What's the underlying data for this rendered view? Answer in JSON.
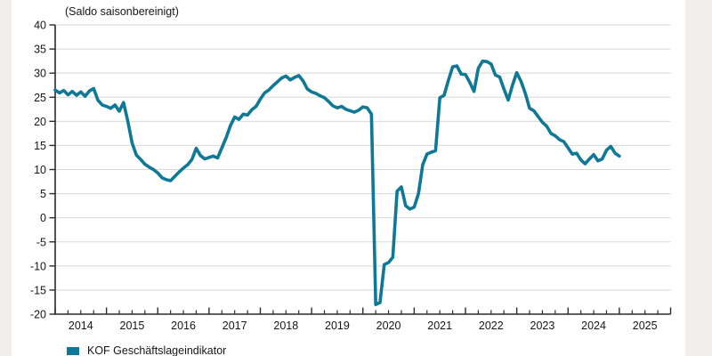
{
  "chart": {
    "subtitle": "(Saldo saisonbereinigt)",
    "legend_label": "KOF Geschäftslageindikator",
    "colors": {
      "line": "#0f7896",
      "grid": "#d8d8d5",
      "axis": "#2b2b2b",
      "text": "#161616",
      "page_background": "#f0efec",
      "plot_background": "#ffffff"
    }
  },
  "chart_data": {
    "type": "line",
    "title": "(Saldo saisonbereinigt)",
    "xlabel": "",
    "ylabel": "",
    "ylim": [
      -20,
      40
    ],
    "xlim": [
      2014,
      2026
    ],
    "grid": "horizontal",
    "legend_position": "bottom-left",
    "y_ticks": [
      40,
      35,
      30,
      25,
      20,
      15,
      10,
      5,
      0,
      -5,
      -10,
      -15,
      -20
    ],
    "x_major_ticks": [
      2014,
      2015,
      2016,
      2017,
      2018,
      2019,
      2020,
      2021,
      2022,
      2023,
      2024,
      2025,
      2026
    ],
    "x_minor_tick_interval_years": 0.25,
    "x_tick_labels": [
      "2014",
      "2015",
      "2016",
      "2017",
      "2018",
      "2019",
      "2020",
      "2021",
      "2022",
      "2023",
      "2024",
      "2025"
    ],
    "series": [
      {
        "name": "KOF Geschäftslageindikator",
        "color": "#0f7896",
        "x_start": 2014.0,
        "x_step_months": 1,
        "values": [
          26.5,
          25.9,
          26.4,
          25.5,
          26.2,
          25.4,
          26.1,
          25.2,
          26.3,
          26.8,
          24.4,
          23.4,
          23.1,
          22.7,
          23.4,
          22.1,
          23.9,
          20.0,
          15.5,
          13.0,
          12.1,
          11.1,
          10.5,
          10.0,
          9.3,
          8.3,
          7.9,
          7.7,
          8.6,
          9.5,
          10.3,
          11.0,
          12.1,
          14.4,
          12.9,
          12.2,
          12.5,
          12.8,
          12.4,
          14.5,
          16.6,
          19.1,
          20.9,
          20.4,
          21.5,
          21.3,
          22.4,
          23.1,
          24.6,
          25.9,
          26.5,
          27.4,
          28.2,
          29.0,
          29.4,
          28.6,
          29.1,
          29.5,
          28.4,
          26.7,
          26.1,
          25.8,
          25.3,
          24.9,
          24.1,
          23.2,
          22.8,
          23.1,
          22.5,
          22.2,
          21.9,
          22.3,
          23.0,
          22.8,
          21.5,
          -18.0,
          -17.6,
          -9.7,
          -9.3,
          -8.2,
          5.5,
          6.4,
          2.5,
          1.8,
          2.2,
          5.0,
          11.0,
          13.2,
          13.6,
          13.9,
          24.9,
          25.4,
          28.5,
          31.3,
          31.5,
          29.8,
          29.7,
          28.1,
          26.2,
          31.0,
          32.5,
          32.4,
          31.9,
          29.6,
          29.2,
          26.7,
          24.4,
          27.5,
          30.1,
          28.3,
          25.8,
          22.7,
          22.2,
          21.0,
          19.8,
          19.0,
          17.5,
          17.0,
          16.2,
          15.8,
          14.5,
          13.2,
          13.4,
          12.0,
          11.2,
          12.2,
          13.1,
          11.8,
          12.2,
          14.0,
          14.8,
          13.4,
          12.8
        ]
      }
    ]
  }
}
